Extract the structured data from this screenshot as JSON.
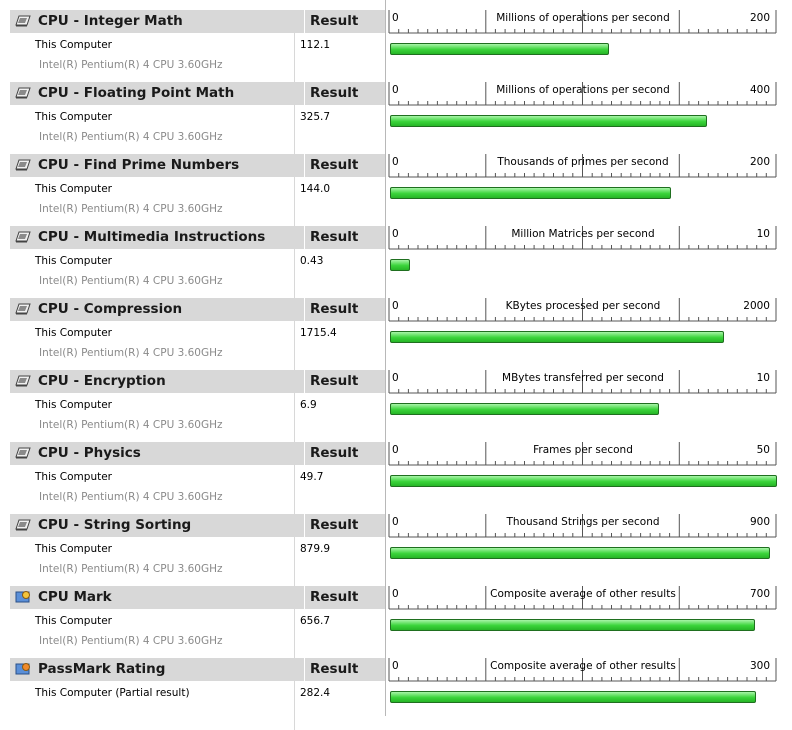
{
  "rows": [
    {
      "title": "CPU - Integer Math",
      "result_header": "Result",
      "computer": "This Computer",
      "cpu": "Intel(R) Pentium(R) 4 CPU 3.60GHz",
      "value": "112.1",
      "value_num": 112.1,
      "scale_min": "0",
      "scale_max": "200",
      "scale_max_num": 200,
      "unit": "Millions of operations per second",
      "icon": "cpu-chip-icon"
    },
    {
      "title": "CPU - Floating Point Math",
      "result_header": "Result",
      "computer": "This Computer",
      "cpu": "Intel(R) Pentium(R) 4 CPU 3.60GHz",
      "value": "325.7",
      "value_num": 325.7,
      "scale_min": "0",
      "scale_max": "400",
      "scale_max_num": 400,
      "unit": "Millions of operations per second",
      "icon": "cpu-chip-icon"
    },
    {
      "title": "CPU - Find Prime Numbers",
      "result_header": "Result",
      "computer": "This Computer",
      "cpu": "Intel(R) Pentium(R) 4 CPU 3.60GHz",
      "value": "144.0",
      "value_num": 144.0,
      "scale_min": "0",
      "scale_max": "200",
      "scale_max_num": 200,
      "unit": "Thousands of primes per second",
      "icon": "cpu-chip-icon"
    },
    {
      "title": "CPU - Multimedia Instructions",
      "result_header": "Result",
      "computer": "This Computer",
      "cpu": "Intel(R) Pentium(R) 4 CPU 3.60GHz",
      "value": "0.43",
      "value_num": 0.43,
      "scale_min": "0",
      "scale_max": "10",
      "scale_max_num": 10,
      "unit": "Million Matrices per second",
      "icon": "cpu-chip-icon"
    },
    {
      "title": "CPU - Compression",
      "result_header": "Result",
      "computer": "This Computer",
      "cpu": "Intel(R) Pentium(R) 4 CPU 3.60GHz",
      "value": "1715.4",
      "value_num": 1715.4,
      "scale_min": "0",
      "scale_max": "2000",
      "scale_max_num": 2000,
      "unit": "KBytes processed per second",
      "icon": "cpu-chip-icon"
    },
    {
      "title": "CPU - Encryption",
      "result_header": "Result",
      "computer": "This Computer",
      "cpu": "Intel(R) Pentium(R) 4 CPU 3.60GHz",
      "value": "6.9",
      "value_num": 6.9,
      "scale_min": "0",
      "scale_max": "10",
      "scale_max_num": 10,
      "unit": "MBytes transferred per second",
      "icon": "cpu-chip-icon"
    },
    {
      "title": "CPU - Physics",
      "result_header": "Result",
      "computer": "This Computer",
      "cpu": "Intel(R) Pentium(R) 4 CPU 3.60GHz",
      "value": "49.7",
      "value_num": 49.7,
      "scale_min": "0",
      "scale_max": "50",
      "scale_max_num": 50,
      "unit": "Frames per second",
      "icon": "cpu-chip-icon"
    },
    {
      "title": "CPU - String Sorting",
      "result_header": "Result",
      "computer": "This Computer",
      "cpu": "Intel(R) Pentium(R) 4 CPU 3.60GHz",
      "value": "879.9",
      "value_num": 879.9,
      "scale_min": "0",
      "scale_max": "900",
      "scale_max_num": 900,
      "unit": "Thousand Strings per second",
      "icon": "cpu-chip-icon"
    },
    {
      "title": "CPU Mark",
      "result_header": "Result",
      "computer": "This Computer",
      "cpu": "Intel(R) Pentium(R) 4 CPU 3.60GHz",
      "value": "656.7",
      "value_num": 656.7,
      "scale_min": "0",
      "scale_max": "700",
      "scale_max_num": 700,
      "unit": "Composite average of other results",
      "icon": "cpu-mark-icon"
    },
    {
      "title": "PassMark Rating",
      "result_header": "Result",
      "computer": "This Computer (Partial result)",
      "cpu": "",
      "value": "282.4",
      "value_num": 282.4,
      "scale_min": "0",
      "scale_max": "300",
      "scale_max_num": 300,
      "unit": "Composite average of other results",
      "icon": "passmark-rating-icon"
    }
  ],
  "colors": {
    "bar": "#3ad43a",
    "header_bg": "#d8d8d8",
    "cpu_text": "#8a8a8a"
  }
}
